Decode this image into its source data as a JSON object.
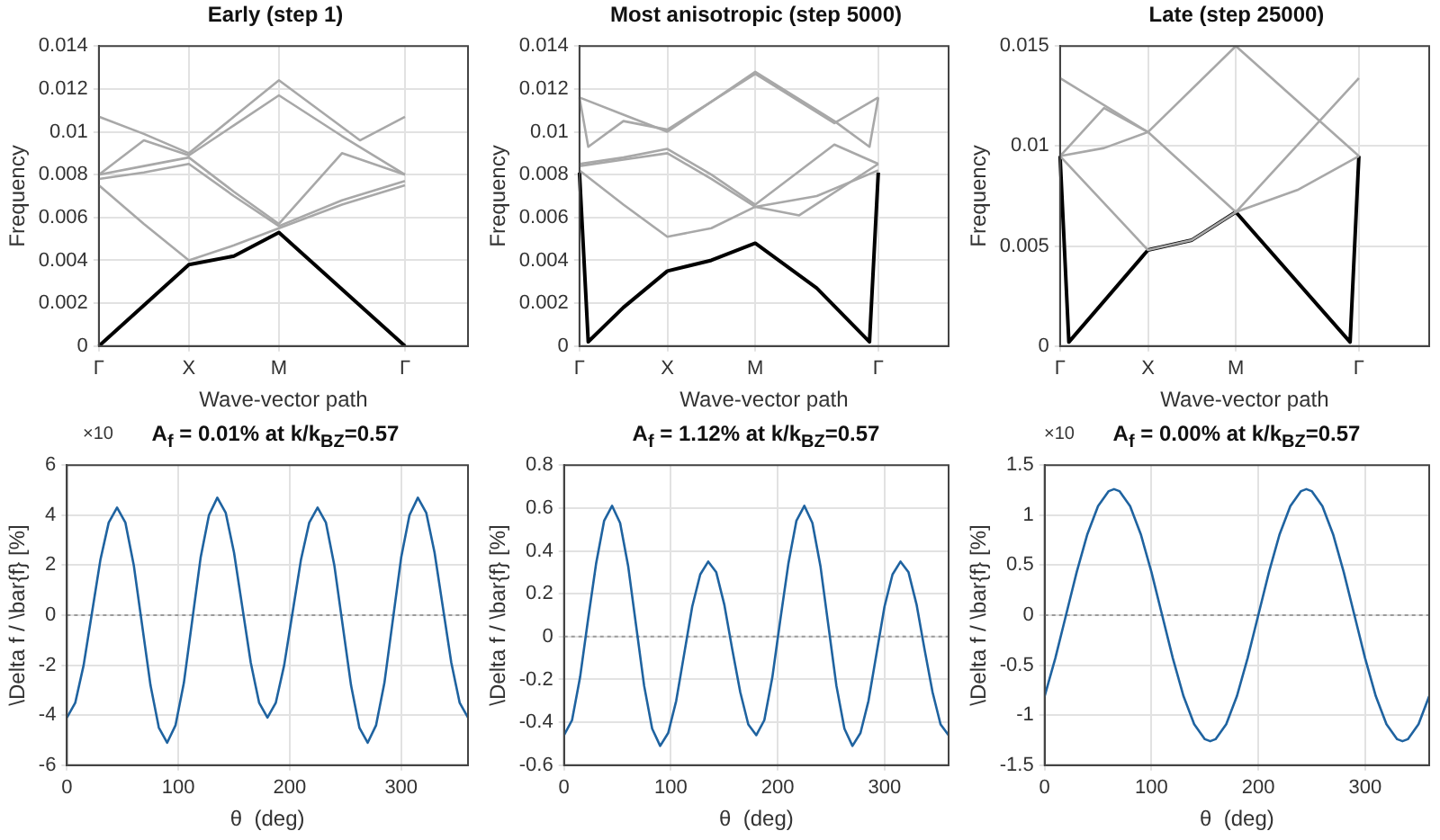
{
  "chart_data": [
    {
      "type": "line",
      "title": "Early (step 1)",
      "xlabel": "Wave-vector path",
      "ylabel": "Frequency",
      "categories": [
        "Γ",
        null,
        null,
        null,
        null,
        null,
        null,
        null,
        null,
        null,
        "X",
        null,
        null,
        null,
        null,
        null,
        null,
        null,
        null,
        null,
        "M",
        null,
        null,
        null,
        null,
        null,
        null,
        null,
        null,
        null,
        null,
        null,
        null,
        null,
        "Γ",
        null,
        null,
        null,
        null,
        null,
        null,
        null
      ],
      "ylim": [
        0,
        0.014
      ],
      "yticks": [
        0,
        0.002,
        0.004,
        0.006,
        0.008,
        0.01,
        0.012,
        0.014
      ],
      "grid": true,
      "legend": false,
      "series": [
        {
          "color": "#a8a8a8",
          "values": [
            0.0075,
            null,
            null,
            null,
            null,
            0.0057,
            null,
            null,
            null,
            null,
            0.004,
            null,
            null,
            null,
            null,
            0.0047,
            null,
            null,
            null,
            null,
            0.0055,
            null,
            null,
            null,
            null,
            null,
            null,
            0.0066,
            null,
            null,
            null,
            null,
            null,
            null,
            0.0075,
            null,
            null,
            null,
            null,
            null,
            null,
            null
          ]
        },
        {
          "color": "#a8a8a8",
          "values": [
            0.0078,
            null,
            null,
            null,
            null,
            0.0081,
            null,
            null,
            null,
            null,
            0.0085,
            null,
            null,
            null,
            null,
            0.007,
            null,
            null,
            null,
            null,
            0.0056,
            null,
            null,
            null,
            null,
            null,
            null,
            0.0068,
            null,
            null,
            null,
            null,
            null,
            null,
            0.0077,
            null,
            null,
            null,
            null,
            null,
            null,
            null
          ]
        },
        {
          "color": "#a8a8a8",
          "values": [
            0.008,
            null,
            null,
            null,
            null,
            0.0084,
            null,
            null,
            null,
            null,
            0.0088,
            null,
            null,
            null,
            null,
            0.0072,
            null,
            null,
            null,
            null,
            0.0057,
            null,
            null,
            null,
            null,
            null,
            null,
            0.009,
            null,
            null,
            null,
            null,
            null,
            null,
            0.008,
            null,
            null,
            null,
            null,
            null,
            null,
            null
          ]
        },
        {
          "color": "#a8a8a8",
          "values": [
            0.008,
            null,
            null,
            null,
            null,
            0.0096,
            null,
            null,
            null,
            null,
            0.0089,
            null,
            null,
            null,
            null,
            0.0103,
            null,
            null,
            null,
            null,
            0.0117,
            null,
            null,
            null,
            null,
            null,
            null,
            0.0098,
            null,
            null,
            null,
            null,
            null,
            null,
            0.008,
            null,
            null,
            null,
            null,
            null,
            null,
            null
          ]
        },
        {
          "color": "#a8a8a8",
          "values": [
            0.0107,
            null,
            null,
            null,
            null,
            0.0099,
            null,
            null,
            null,
            null,
            0.009,
            null,
            null,
            null,
            null,
            0.0107,
            null,
            null,
            null,
            null,
            0.0124,
            null,
            null,
            null,
            null,
            null,
            null,
            null,
            null,
            0.0096,
            null,
            null,
            null,
            null,
            0.0107,
            null,
            null,
            null,
            null,
            null,
            null,
            null
          ]
        },
        {
          "color": "#000000",
          "values": [
            0,
            null,
            null,
            null,
            null,
            null,
            null,
            null,
            null,
            null,
            0.0038,
            null,
            null,
            null,
            null,
            0.0042,
            null,
            null,
            null,
            null,
            0.0053,
            null,
            null,
            null,
            null,
            null,
            null,
            null,
            null,
            null,
            null,
            null,
            null,
            null,
            0,
            null,
            null,
            null,
            null,
            null,
            null,
            null
          ]
        }
      ]
    },
    {
      "type": "line",
      "title": "Most anisotropic (step 5000)",
      "xlabel": "Wave-vector path",
      "ylabel": "Frequency",
      "categories": [
        "Γ",
        null,
        null,
        null,
        null,
        null,
        null,
        null,
        null,
        null,
        "X",
        null,
        null,
        null,
        null,
        null,
        null,
        null,
        null,
        null,
        "M",
        null,
        null,
        null,
        null,
        null,
        null,
        null,
        null,
        null,
        null,
        null,
        null,
        null,
        "Γ",
        null,
        null,
        null,
        null,
        null,
        null,
        null,
        null
      ],
      "ylim": [
        0,
        0.014
      ],
      "yticks": [
        0,
        0.002,
        0.004,
        0.006,
        0.008,
        0.01,
        0.012,
        0.014
      ],
      "grid": true,
      "legend": false,
      "series": [
        {
          "color": "#a8a8a8",
          "values": [
            0.0082,
            null,
            null,
            null,
            null,
            0.0066,
            null,
            null,
            null,
            null,
            0.0051,
            null,
            null,
            null,
            null,
            0.0055,
            null,
            null,
            null,
            null,
            0.0065,
            null,
            null,
            null,
            null,
            0.0061,
            null,
            null,
            null,
            null,
            null,
            null,
            null,
            null,
            0.0085,
            null,
            null,
            null,
            null,
            null,
            null,
            null,
            null
          ]
        },
        {
          "color": "#a8a8a8",
          "values": [
            0.0084,
            null,
            null,
            null,
            null,
            0.0087,
            null,
            null,
            null,
            null,
            0.009,
            null,
            null,
            null,
            null,
            0.0078,
            null,
            null,
            null,
            null,
            0.0065,
            null,
            null,
            null,
            null,
            null,
            null,
            0.007,
            null,
            null,
            null,
            null,
            null,
            null,
            0.0082,
            null,
            null,
            null,
            null,
            null,
            null,
            null,
            null
          ]
        },
        {
          "color": "#a8a8a8",
          "values": [
            0.0085,
            null,
            null,
            null,
            null,
            0.0088,
            null,
            null,
            null,
            null,
            0.0092,
            null,
            null,
            null,
            null,
            0.008,
            null,
            null,
            null,
            null,
            0.0066,
            null,
            null,
            null,
            null,
            null,
            null,
            null,
            null,
            0.0094,
            null,
            null,
            null,
            null,
            0.0085,
            null,
            null,
            null,
            null,
            null,
            null,
            null,
            null
          ]
        },
        {
          "color": "#a8a8a8",
          "values": [
            0.0116,
            null,
            null,
            null,
            null,
            0.0108,
            null,
            null,
            null,
            null,
            0.01,
            null,
            null,
            null,
            null,
            0.0114,
            null,
            null,
            null,
            null,
            0.0128,
            null,
            null,
            null,
            null,
            null,
            null,
            null,
            null,
            0.0105,
            null,
            null,
            null,
            0.0093,
            0.0116,
            null,
            null,
            null,
            null,
            null,
            null,
            null,
            null
          ]
        },
        {
          "color": "#a8a8a8",
          "values": [
            0.0116,
            0.0093,
            null,
            null,
            null,
            0.0105,
            null,
            null,
            null,
            null,
            0.0101,
            null,
            null,
            null,
            null,
            0.0114,
            null,
            null,
            null,
            null,
            0.0127,
            null,
            null,
            null,
            null,
            null,
            null,
            null,
            null,
            0.0104,
            null,
            null,
            null,
            null,
            0.0116,
            null,
            null,
            null,
            null,
            null,
            null,
            null,
            null
          ]
        },
        {
          "color": "#000000",
          "values": [
            0.0081,
            0.0002,
            null,
            null,
            null,
            0.0018,
            null,
            null,
            null,
            null,
            0.0035,
            null,
            null,
            null,
            null,
            0.004,
            null,
            null,
            null,
            null,
            0.0048,
            null,
            null,
            null,
            null,
            null,
            null,
            0.0027,
            null,
            null,
            null,
            null,
            null,
            0.0002,
            0.0081,
            null,
            null,
            null,
            null,
            null,
            null,
            null,
            null
          ]
        }
      ]
    },
    {
      "type": "line",
      "title": "Late (step 25000)",
      "xlabel": "Wave-vector path",
      "ylabel": "Frequency",
      "categories": [
        "Γ",
        null,
        null,
        null,
        null,
        null,
        null,
        null,
        null,
        null,
        "X",
        null,
        null,
        null,
        null,
        null,
        null,
        null,
        null,
        null,
        "M",
        null,
        null,
        null,
        null,
        null,
        null,
        null,
        null,
        null,
        null,
        null,
        null,
        null,
        "Γ",
        null,
        null,
        null,
        null,
        null,
        null,
        null,
        null
      ],
      "ylim": [
        0,
        0.015
      ],
      "yticks": [
        0,
        0.005,
        0.01,
        0.015
      ],
      "grid": true,
      "legend": false,
      "series": [
        {
          "color": "#a8a8a8",
          "values": [
            0.0095,
            null,
            null,
            null,
            null,
            null,
            null,
            null,
            null,
            null,
            0.0048,
            null,
            null,
            null,
            null,
            0.0053,
            null,
            null,
            null,
            null,
            0.0067,
            null,
            null,
            null,
            null,
            null,
            null,
            0.0078,
            null,
            null,
            null,
            null,
            null,
            null,
            0.0095,
            null,
            null,
            null,
            null,
            null,
            null,
            null,
            null
          ]
        },
        {
          "color": "#a8a8a8",
          "values": [
            0.0134,
            null,
            null,
            null,
            null,
            null,
            null,
            null,
            null,
            null,
            0.0107,
            null,
            null,
            null,
            null,
            null,
            null,
            null,
            null,
            null,
            0.0067,
            null,
            null,
            null,
            null,
            null,
            null,
            null,
            null,
            null,
            null,
            null,
            null,
            null,
            0.0134,
            null,
            null,
            null,
            null,
            null,
            null,
            null,
            null
          ]
        },
        {
          "color": "#a8a8a8",
          "values": [
            0.0095,
            null,
            null,
            null,
            null,
            0.0099,
            null,
            null,
            null,
            null,
            0.0107,
            null,
            null,
            null,
            null,
            null,
            null,
            null,
            null,
            null,
            0.015,
            null,
            null,
            null,
            null,
            null,
            null,
            null,
            null,
            null,
            null,
            null,
            null,
            null,
            0.0095,
            null,
            null,
            null,
            null,
            null,
            null,
            null,
            null
          ]
        },
        {
          "color": "#a8a8a8",
          "values": [
            0.0095,
            null,
            null,
            null,
            null,
            0.0119,
            null,
            null,
            null,
            null,
            0.0107,
            null,
            null,
            null,
            null,
            null,
            null,
            null,
            null,
            null,
            null,
            null,
            null,
            null,
            null,
            null,
            null,
            null,
            null,
            null,
            null,
            null,
            null,
            null,
            null,
            null,
            null,
            null,
            null,
            null,
            null,
            null,
            null
          ]
        },
        {
          "color": "#000000",
          "values": [
            0.0095,
            0.0002,
            null,
            null,
            null,
            null,
            null,
            null,
            null,
            null,
            0.0048,
            null,
            null,
            null,
            null,
            0.0053,
            null,
            null,
            null,
            null,
            0.0067,
            null,
            null,
            null,
            null,
            null,
            null,
            null,
            null,
            null,
            null,
            null,
            null,
            0.0002,
            0.0095,
            null,
            null,
            null,
            null,
            null,
            null,
            null,
            null
          ]
        }
      ]
    },
    {
      "type": "line",
      "title": "A$_{f}$  =  0.01%  at  k/k$_{BZ}$=0.57",
      "xlabel": "θ  (deg)",
      "ylabel": "\\Delta f / \\bar{f} [%]",
      "annotations": [
        "×10"
      ],
      "xlim": [
        0,
        360
      ],
      "xticks": [
        0,
        100,
        200,
        300
      ],
      "ylim": [
        -6,
        6
      ],
      "yticks": [
        -6,
        -4,
        -2,
        0,
        2,
        4,
        6
      ],
      "grid": true,
      "legend": false,
      "ref_lines": [
        {
          "axis": "y",
          "value": 0,
          "color": "#9a9a9a",
          "line_style": "dotted"
        }
      ],
      "x": [
        0,
        7.5,
        15,
        22.5,
        30,
        37.5,
        45,
        52.5,
        60,
        67.5,
        75,
        82.5,
        90,
        97.5,
        105,
        112.5,
        120,
        127.5,
        135,
        142.5,
        150,
        157.5,
        165,
        172.5,
        180,
        187.5,
        195,
        202.5,
        210,
        217.5,
        225,
        232.5,
        240,
        247.5,
        255,
        262.5,
        270,
        277.5,
        285,
        292.5,
        300,
        307.5,
        315,
        322.5,
        330,
        337.5,
        345,
        352.5,
        360
      ],
      "series": [
        {
          "color": "#1f63a0",
          "values": [
            -4.1,
            -3.5,
            -2.0,
            0.1,
            2.2,
            3.7,
            4.3,
            3.7,
            2.0,
            -0.4,
            -2.8,
            -4.5,
            -5.1,
            -4.4,
            -2.7,
            -0.2,
            2.3,
            4.0,
            4.7,
            4.1,
            2.5,
            0.3,
            -1.9,
            -3.5,
            -4.1,
            -3.5,
            -2.0,
            0.1,
            2.2,
            3.7,
            4.3,
            3.7,
            2.0,
            -0.4,
            -2.8,
            -4.5,
            -5.1,
            -4.4,
            -2.7,
            -0.2,
            2.3,
            4.0,
            4.7,
            4.1,
            2.5,
            0.3,
            -1.9,
            -3.5,
            -4.1
          ]
        }
      ]
    },
    {
      "type": "line",
      "title": "A$_{f}$  =  1.12%  at  k/k$_{BZ}$=0.57",
      "xlabel": "θ  (deg)",
      "ylabel": "\\Delta f / \\bar{f} [%]",
      "xlim": [
        0,
        360
      ],
      "xticks": [
        0,
        100,
        200,
        300
      ],
      "ylim": [
        -0.6,
        0.8
      ],
      "yticks": [
        -0.6,
        -0.4,
        -0.2,
        0,
        0.2,
        0.4,
        0.6,
        0.8
      ],
      "grid": true,
      "legend": false,
      "ref_lines": [
        {
          "axis": "y",
          "value": 0,
          "color": "#9a9a9a",
          "line_style": "dotted"
        }
      ],
      "x": [
        0,
        7.5,
        15,
        22.5,
        30,
        37.5,
        45,
        52.5,
        60,
        67.5,
        75,
        82.5,
        90,
        97.5,
        105,
        112.5,
        120,
        127.5,
        135,
        142.5,
        150,
        157.5,
        165,
        172.5,
        180,
        187.5,
        195,
        202.5,
        210,
        217.5,
        225,
        232.5,
        240,
        247.5,
        255,
        262.5,
        270,
        277.5,
        285,
        292.5,
        300,
        307.5,
        315,
        322.5,
        330,
        337.5,
        345,
        352.5,
        360
      ],
      "series": [
        {
          "color": "#1f63a0",
          "values": [
            -0.46,
            -0.39,
            -0.19,
            0.08,
            0.34,
            0.54,
            0.61,
            0.53,
            0.33,
            0.05,
            -0.23,
            -0.43,
            -0.51,
            -0.45,
            -0.3,
            -0.08,
            0.14,
            0.29,
            0.35,
            0.3,
            0.15,
            -0.06,
            -0.26,
            -0.41,
            -0.46,
            -0.39,
            -0.19,
            0.08,
            0.34,
            0.54,
            0.61,
            0.53,
            0.33,
            0.05,
            -0.23,
            -0.43,
            -0.51,
            -0.45,
            -0.3,
            -0.08,
            0.14,
            0.29,
            0.35,
            0.3,
            0.15,
            -0.06,
            -0.26,
            -0.41,
            -0.46
          ]
        }
      ]
    },
    {
      "type": "line",
      "title": "A$_{f}$  =  0.00%  at  k/k$_{BZ}$=0.57",
      "xlabel": "θ  (deg)",
      "ylabel": "\\Delta f / \\bar{f} [%]",
      "annotations": [
        "×10"
      ],
      "xlim": [
        0,
        360
      ],
      "xticks": [
        0,
        100,
        200,
        300
      ],
      "ylim": [
        -1.5,
        1.5
      ],
      "yticks": [
        -1.5,
        -1,
        -0.5,
        0,
        0.5,
        1,
        1.5
      ],
      "grid": true,
      "legend": false,
      "ref_lines": [
        {
          "axis": "y",
          "value": 0,
          "color": "#9a9a9a",
          "line_style": "dotted"
        }
      ],
      "x": [
        0,
        10,
        20,
        30,
        40,
        50,
        60,
        65,
        70,
        80,
        90,
        100,
        110,
        120,
        130,
        140,
        150,
        155,
        160,
        170,
        180,
        190,
        200,
        210,
        220,
        230,
        240,
        245,
        250,
        260,
        270,
        280,
        290,
        300,
        310,
        320,
        330,
        335,
        340,
        350,
        360
      ],
      "series": [
        {
          "color": "#1f63a0",
          "values": [
            -0.81,
            -0.43,
            0,
            0.43,
            0.81,
            1.09,
            1.24,
            1.26,
            1.24,
            1.09,
            0.81,
            0.43,
            0,
            -0.43,
            -0.81,
            -1.09,
            -1.24,
            -1.26,
            -1.24,
            -1.09,
            -0.81,
            -0.43,
            0,
            0.43,
            0.81,
            1.09,
            1.24,
            1.26,
            1.24,
            1.09,
            0.81,
            0.43,
            0,
            -0.43,
            -0.81,
            -1.09,
            -1.24,
            -1.26,
            -1.24,
            -1.09,
            -0.81
          ]
        }
      ]
    }
  ]
}
